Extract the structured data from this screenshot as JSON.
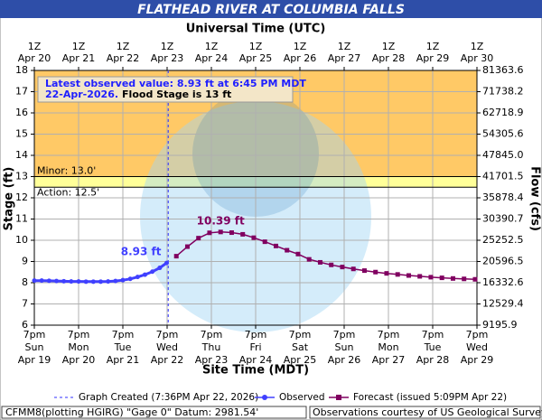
{
  "chart_data": {
    "type": "hydrograph",
    "title": "FLATHEAD RIVER AT COLUMBIA FALLS",
    "top_axis_title": "Universal Time (UTC)",
    "x_axis_title": "Site Time (MDT)",
    "y_axis_title": "Stage (ft)",
    "y2_axis_title": "Flow (cfs)",
    "xlim": [
      "Apr 19 19:00",
      "Apr 29 19:00"
    ],
    "xticks": [
      {
        "value": "Apr 19 19:00",
        "label": [
          "7pm",
          "Sun",
          "Apr 19"
        ]
      },
      {
        "value": "Apr 20 19:00",
        "label": [
          "7pm",
          "Mon",
          "Apr 20"
        ]
      },
      {
        "value": "Apr 21 19:00",
        "label": [
          "7pm",
          "Tue",
          "Apr 21"
        ]
      },
      {
        "value": "Apr 22 19:00",
        "label": [
          "7pm",
          "Wed",
          "Apr 22"
        ]
      },
      {
        "value": "Apr 23 19:00",
        "label": [
          "7pm",
          "Thu",
          "Apr 23"
        ]
      },
      {
        "value": "Apr 24 19:00",
        "label": [
          "7pm",
          "Fri",
          "Apr 24"
        ]
      },
      {
        "value": "Apr 25 19:00",
        "label": [
          "7pm",
          "Sat",
          "Apr 25"
        ]
      },
      {
        "value": "Apr 26 19:00",
        "label": [
          "7pm",
          "Sun",
          "Apr 26"
        ]
      },
      {
        "value": "Apr 27 19:00",
        "label": [
          "7pm",
          "Mon",
          "Apr 27"
        ]
      },
      {
        "value": "Apr 28 19:00",
        "label": [
          "7pm",
          "Tue",
          "Apr 28"
        ]
      },
      {
        "value": "Apr 29 19:00",
        "label": [
          "7pm",
          "Wed",
          "Apr 29"
        ]
      }
    ],
    "x2ticks": [
      {
        "value": "Apr 19 19:00",
        "label": [
          "1Z",
          "Apr 20"
        ]
      },
      {
        "value": "Apr 20 19:00",
        "label": [
          "1Z",
          "Apr 21"
        ]
      },
      {
        "value": "Apr 21 19:00",
        "label": [
          "1Z",
          "Apr 22"
        ]
      },
      {
        "value": "Apr 22 19:00",
        "label": [
          "1Z",
          "Apr 23"
        ]
      },
      {
        "value": "Apr 23 19:00",
        "label": [
          "1Z",
          "Apr 24"
        ]
      },
      {
        "value": "Apr 24 19:00",
        "label": [
          "1Z",
          "Apr 25"
        ]
      },
      {
        "value": "Apr 25 19:00",
        "label": [
          "1Z",
          "Apr 26"
        ]
      },
      {
        "value": "Apr 26 19:00",
        "label": [
          "1Z",
          "Apr 27"
        ]
      },
      {
        "value": "Apr 27 19:00",
        "label": [
          "1Z",
          "Apr 28"
        ]
      },
      {
        "value": "Apr 28 19:00",
        "label": [
          "1Z",
          "Apr 29"
        ]
      },
      {
        "value": "Apr 29 19:00",
        "label": [
          "1Z",
          "Apr 30"
        ]
      }
    ],
    "ylim": [
      6,
      18
    ],
    "yticks": [
      6,
      7,
      8,
      9,
      10,
      11,
      12,
      13,
      14,
      15,
      16,
      17,
      18
    ],
    "y2lim": [
      9195.9,
      81363.6
    ],
    "y2ticks": [
      9195.9,
      12529.4,
      16332.6,
      20596.5,
      25252.5,
      30390.7,
      35878.4,
      41701.5,
      {
        "value": 47845,
        "label": "47845.0"
      },
      54305.6,
      62718.9,
      71738.2,
      81363.6
    ],
    "grid": true,
    "flood_stages": [
      {
        "value": 13,
        "label": "Minor: 13.0'",
        "color": "#ffc966"
      },
      {
        "value": 12.5,
        "label": "Action: 12.5'",
        "color": "#ffff99"
      }
    ],
    "series": [
      {
        "name": "Observed",
        "color": "#4040ff",
        "marker": "circle",
        "x": [
          "Apr 19 19:00",
          "Apr 19 23:00",
          "Apr 20 03:00",
          "Apr 20 07:00",
          "Apr 20 11:00",
          "Apr 20 15:00",
          "Apr 20 19:00",
          "Apr 20 23:00",
          "Apr 21 03:00",
          "Apr 21 07:00",
          "Apr 21 11:00",
          "Apr 21 15:00",
          "Apr 21 19:00",
          "Apr 21 23:00",
          "Apr 22 03:00",
          "Apr 22 07:00",
          "Apr 22 11:00",
          "Apr 22 15:00",
          "Apr 22 18:45"
        ],
        "values": [
          8.1,
          8.1,
          8.09,
          8.08,
          8.07,
          8.06,
          8.06,
          8.05,
          8.05,
          8.05,
          8.06,
          8.08,
          8.12,
          8.18,
          8.27,
          8.38,
          8.52,
          8.7,
          8.93
        ],
        "value_labels": [
          null,
          null,
          null,
          null,
          null,
          null,
          null,
          null,
          null,
          null,
          null,
          null,
          null,
          null,
          null,
          null,
          null,
          null,
          "8.93 ft"
        ]
      },
      {
        "name": "Forecast (issued 5:09PM Apr 22)",
        "color": "#800060",
        "marker": "square",
        "x": [
          "Apr 23 00:00",
          "Apr 23 06:00",
          "Apr 23 12:00",
          "Apr 23 18:00",
          "Apr 24 00:00",
          "Apr 24 06:00",
          "Apr 24 12:00",
          "Apr 24 18:00",
          "Apr 25 00:00",
          "Apr 25 06:00",
          "Apr 25 12:00",
          "Apr 25 18:00",
          "Apr 26 00:00",
          "Apr 26 06:00",
          "Apr 26 12:00",
          "Apr 26 18:00",
          "Apr 27 00:00",
          "Apr 27 06:00",
          "Apr 27 12:00",
          "Apr 27 18:00",
          "Apr 28 00:00",
          "Apr 28 06:00",
          "Apr 28 12:00",
          "Apr 28 18:00",
          "Apr 29 00:00",
          "Apr 29 06:00",
          "Apr 29 12:00",
          "Apr 29 18:00"
        ],
        "values": [
          9.25,
          9.7,
          10.1,
          10.35,
          10.39,
          10.36,
          10.28,
          10.12,
          9.93,
          9.73,
          9.53,
          9.35,
          9.1,
          8.96,
          8.84,
          8.74,
          8.65,
          8.57,
          8.5,
          8.44,
          8.39,
          8.34,
          8.3,
          8.26,
          8.23,
          8.2,
          8.18,
          8.16
        ],
        "value_labels": [
          null,
          null,
          null,
          null,
          "10.39 ft",
          null,
          null,
          null,
          null,
          null,
          null,
          null,
          null,
          null,
          null,
          null,
          null,
          null,
          null,
          null,
          null,
          null,
          null,
          null,
          null,
          null,
          null,
          null
        ]
      }
    ],
    "created": {
      "x": "Apr 22 19:36",
      "label": "Graph Created (7:36PM Apr 22, 2026)"
    },
    "annotation": {
      "lines": [
        "Latest observed value: 8.93 ft at 6:45 PM MDT",
        "22-Apr-2026."
      ],
      "flood_note": "Flood Stage is 13 ft"
    },
    "footer": {
      "left": "CFMM8(plotting HGIRG) \"Gage 0\" Datum: 2981.54'",
      "right": "Observations courtesy of US Geological Survey"
    }
  }
}
